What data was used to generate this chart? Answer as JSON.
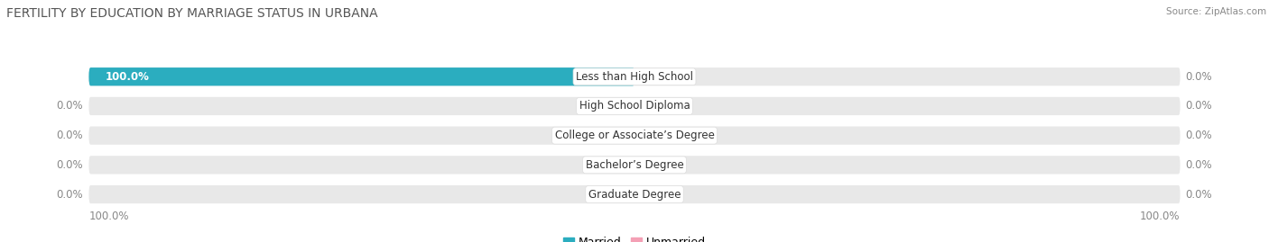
{
  "title": "FERTILITY BY EDUCATION BY MARRIAGE STATUS IN URBANA",
  "source": "Source: ZipAtlas.com",
  "categories": [
    "Less than High School",
    "High School Diploma",
    "College or Associate’s Degree",
    "Bachelor’s Degree",
    "Graduate Degree"
  ],
  "married_values": [
    100.0,
    0.0,
    0.0,
    0.0,
    0.0
  ],
  "unmarried_values": [
    0.0,
    0.0,
    0.0,
    0.0,
    0.0
  ],
  "married_color": "#2BADBF",
  "married_color_light": "#7DCDD6",
  "unmarried_color": "#F4A0B5",
  "unmarried_color_light": "#F9C8D5",
  "bar_bg_color": "#E8E8E8",
  "bar_bg_color2": "#F5F5F5",
  "left_value_color": "#888888",
  "right_value_color": "#888888",
  "inside_value_color": "#FFFFFF",
  "left_axis_label": "100.0%",
  "right_axis_label": "100.0%",
  "fig_bg": "#FFFFFF",
  "title_fontsize": 10,
  "source_fontsize": 7.5,
  "value_fontsize": 8.5,
  "category_fontsize": 8.5,
  "legend_fontsize": 9,
  "axis_label_fontsize": 8.5
}
